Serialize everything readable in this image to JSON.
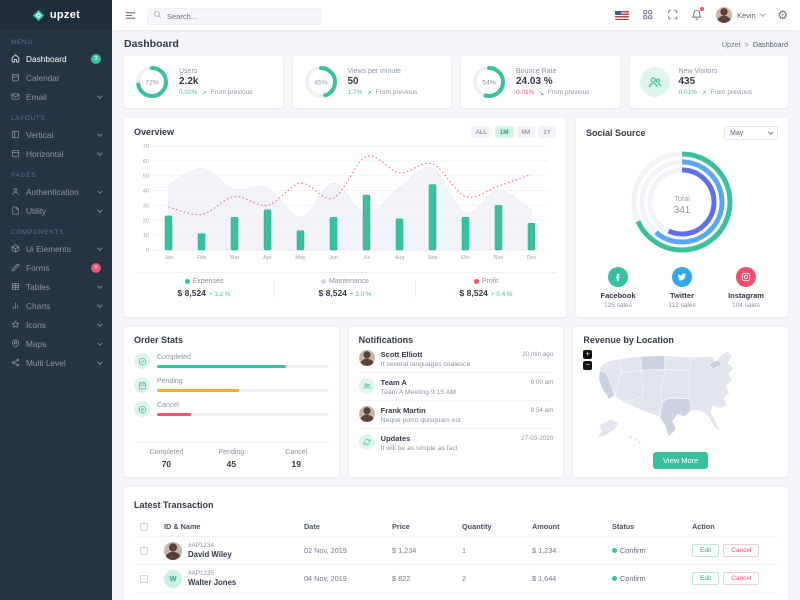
{
  "colors": {
    "accent": "#3ac0a0",
    "danger": "#f0536e",
    "warning": "#f7a93b",
    "line_pink": "#f5708c",
    "area_gray": "#ebeef5",
    "blue": "#57a8f2",
    "indigo": "#5f6fe8",
    "twitter": "#35a6eb",
    "instagram": "#ee4f6d",
    "sidebar_bg": "#253545",
    "page_bg": "#f4f5f8"
  },
  "brand": {
    "name": "upzet"
  },
  "topbar": {
    "search_placeholder": "Search...",
    "user": {
      "name": "Kevin"
    },
    "icons": [
      "us-flag",
      "apps-grid",
      "fullscreen",
      "notification-bell",
      "user-avatar",
      "settings-gear"
    ]
  },
  "page": {
    "title": "Dashboard",
    "breadcrumb_root": "Upzet",
    "breadcrumb_sep": ">",
    "breadcrumb_current": "Dashboard"
  },
  "sidebar": {
    "sections": [
      {
        "label": "MENU",
        "items": [
          {
            "label": "Dashboard",
            "icon": "home",
            "badge": "3"
          },
          {
            "label": "Calendar",
            "icon": "calendar"
          },
          {
            "label": "Email",
            "icon": "mail"
          }
        ]
      },
      {
        "label": "LAYOUTS",
        "items": [
          {
            "label": "Vertical",
            "icon": "layout-vertical"
          },
          {
            "label": "Horizontal",
            "icon": "layout-horizontal"
          }
        ]
      },
      {
        "label": "PAGES",
        "items": [
          {
            "label": "Authentication",
            "icon": "user"
          },
          {
            "label": "Utility",
            "icon": "file"
          }
        ]
      },
      {
        "label": "COMPONENTS",
        "items": [
          {
            "label": "Ui Elements",
            "icon": "box"
          },
          {
            "label": "Forms",
            "icon": "edit",
            "badge": "8"
          },
          {
            "label": "Tables",
            "icon": "table"
          },
          {
            "label": "Charts",
            "icon": "bar-chart"
          },
          {
            "label": "Icons",
            "icon": "star"
          },
          {
            "label": "Maps",
            "icon": "map-pin"
          },
          {
            "label": "Multi Level",
            "icon": "share"
          }
        ]
      }
    ]
  },
  "stats": [
    {
      "label": "Users",
      "value": "2.2k",
      "percent": 72,
      "delta": "0.02%",
      "arrow": "↗",
      "direction": "up",
      "note": "From previous"
    },
    {
      "label": "Views per minute",
      "value": "50",
      "percent": 45,
      "delta": "1.7%",
      "arrow": "↗",
      "direction": "up",
      "note": "From previous"
    },
    {
      "label": "Bounce Rate",
      "value": "24.03 %",
      "percent": 54,
      "delta": "0.01%",
      "arrow": "↘",
      "direction": "down",
      "note": "From previous"
    },
    {
      "label": "New Visitors",
      "value": "435",
      "delta": "0.01%",
      "arrow": "↗",
      "direction": "up",
      "note": "From previous"
    }
  ],
  "overview": {
    "title": "Overview",
    "ranges": [
      "ALL",
      "1M",
      "6M",
      "1Y"
    ],
    "active_range": "1M",
    "legend": [
      {
        "name": "Expenses",
        "amount": "$ 8,524",
        "delta": "+ 1.2 %"
      },
      {
        "name": "Maintenance",
        "amount": "$ 8,524",
        "delta": "+ 2.0 %"
      },
      {
        "name": "Profit",
        "amount": "$ 8,524",
        "delta": "+ 0.4 %"
      }
    ]
  },
  "chart_data": [
    {
      "type": "bar",
      "title": "Overview",
      "categories": [
        "Jan",
        "Feb",
        "Mar",
        "Apr",
        "May",
        "Jun",
        "Jul",
        "Aug",
        "Sep",
        "Oct",
        "Nov",
        "Dec"
      ],
      "series": [
        {
          "name": "Expenses",
          "render": "bar",
          "color": "#3ac0a0",
          "values": [
            23,
            11,
            22,
            27,
            13,
            22,
            37,
            21,
            44,
            22,
            30,
            18
          ]
        },
        {
          "name": "Maintenance",
          "render": "area",
          "color": "#ebeef5",
          "values": [
            44,
            55,
            41,
            42,
            22,
            45,
            24,
            42,
            55,
            25,
            40,
            27
          ]
        },
        {
          "name": "Profit",
          "render": "dashed-line",
          "color": "#f5708c",
          "values": [
            29,
            24,
            36,
            30,
            45,
            35,
            63,
            52,
            58,
            36,
            43,
            51
          ]
        }
      ],
      "xlabel": "",
      "ylabel": "",
      "ylim": [
        0,
        70
      ],
      "yticks": [
        0,
        10,
        20,
        30,
        40,
        50,
        60,
        70
      ],
      "grid": true,
      "legend_position": "bottom"
    },
    {
      "type": "pie",
      "title": "Social Source",
      "labels": [
        "Facebook",
        "Twitter",
        "Instagram"
      ],
      "values": [
        125,
        112,
        104
      ],
      "colors": [
        "#3ac0a0",
        "#57a8f2",
        "#5f6fe8"
      ],
      "total_label": "Total",
      "total": 341,
      "style": "concentric-radial-rings"
    },
    {
      "type": "bar",
      "title": "Order Stats",
      "categories": [
        "Completed",
        "Pending",
        "Cancel"
      ],
      "values": [
        70,
        45,
        19
      ],
      "colors": [
        "#3ac0a0",
        "#f7a93b",
        "#f0536e"
      ]
    }
  ],
  "social": {
    "title": "Social Source",
    "period": "May",
    "total_label": "Total",
    "total_value": "341",
    "items": [
      {
        "name": "Facebook",
        "sales": "125 sales",
        "icon": "facebook"
      },
      {
        "name": "Twitter",
        "sales": "112 sales",
        "icon": "twitter"
      },
      {
        "name": "Instagram",
        "sales": "104 sales",
        "icon": "instagram"
      }
    ]
  },
  "order_stats": {
    "title": "Order Stats",
    "rows": [
      {
        "label": "Completed",
        "icon": "check-circle",
        "percent": 75
      },
      {
        "label": "Pending",
        "icon": "calendar",
        "percent": 48
      },
      {
        "label": "Cancel",
        "icon": "x-circle",
        "percent": 20
      }
    ],
    "summary": [
      {
        "label": "Completed",
        "value": "70"
      },
      {
        "label": "Pending",
        "value": "45"
      },
      {
        "label": "Cancel",
        "value": "19"
      }
    ]
  },
  "notifications": {
    "title": "Notifications",
    "items": [
      {
        "name": "Scott Elliott",
        "text": "If several languages coalesce",
        "time": "20 min ago",
        "avatar": "photo"
      },
      {
        "name": "Team A",
        "text": "Team A Meeting 9:15 AM",
        "time": "9:00 am",
        "avatar": "users-icon"
      },
      {
        "name": "Frank Martin",
        "text": "Neque porro quisquam est",
        "time": "8:54 am",
        "avatar": "photo"
      },
      {
        "name": "Updates",
        "text": "It will be as simple as fact",
        "time": "27-03-2020",
        "avatar": "updates-icon"
      }
    ]
  },
  "revenue": {
    "title": "Revenue by Location",
    "zoom_in": "+",
    "zoom_out": "−",
    "button_label": "View More"
  },
  "transactions": {
    "title": "Latest Transaction",
    "headers": [
      "ID & Name",
      "Date",
      "Price",
      "Quantity",
      "Amount",
      "Status",
      "Action"
    ],
    "rows": [
      {
        "id": "#AP1234",
        "name": "David Wiley",
        "date": "02 Nov, 2019",
        "price": "$ 1,234",
        "quantity": "1",
        "amount": "$ 1,234",
        "status": "Confirm",
        "edit_label": "Edit",
        "cancel_label": "Cancel",
        "avatar": "photo",
        "avatar_initial": ""
      },
      {
        "id": "#AP1235",
        "name": "Walter Jones",
        "date": "04 Nov, 2019",
        "price": "$ 822",
        "quantity": "2",
        "amount": "$ 1,644",
        "status": "Confirm",
        "edit_label": "Edit",
        "cancel_label": "Cancel",
        "avatar": "initial",
        "avatar_initial": "W"
      }
    ]
  }
}
